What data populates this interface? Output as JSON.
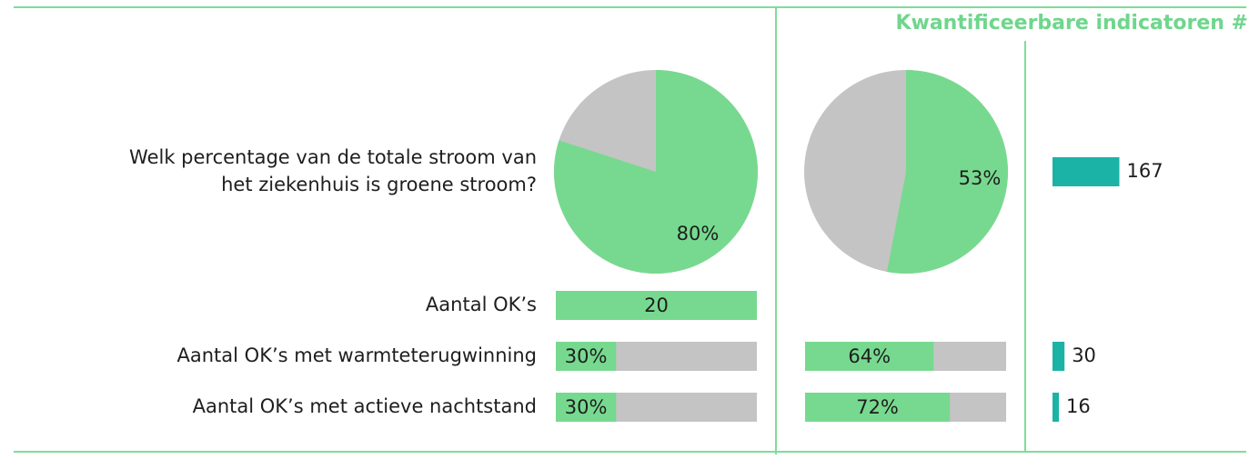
{
  "header": "Kwantificeerbare indicatoren #",
  "rows": [
    {
      "label": [
        "Welk percentage van de totale stroom van",
        "het ziekenhuis is groene stroom?"
      ],
      "type": "pie",
      "col1": {
        "value": 80,
        "label": "80%"
      },
      "col2": {
        "value": 53,
        "label": "53%"
      },
      "count": 167
    },
    {
      "label": [
        "Aantal OK’s"
      ],
      "type": "full",
      "col1": 20
    },
    {
      "label": [
        "Aantal OK’s met warmteterugwinning"
      ],
      "type": "bar",
      "col1": {
        "value": 30,
        "label": "30%"
      },
      "col2": {
        "value": 64,
        "label": "64%"
      },
      "count": 30
    },
    {
      "label": [
        "Aantal OK’s met actieve nachtstand"
      ],
      "type": "bar",
      "col1": {
        "value": 30,
        "label": "30%"
      },
      "col2": {
        "value": 72,
        "label": "72%"
      },
      "count": 16
    }
  ]
}
